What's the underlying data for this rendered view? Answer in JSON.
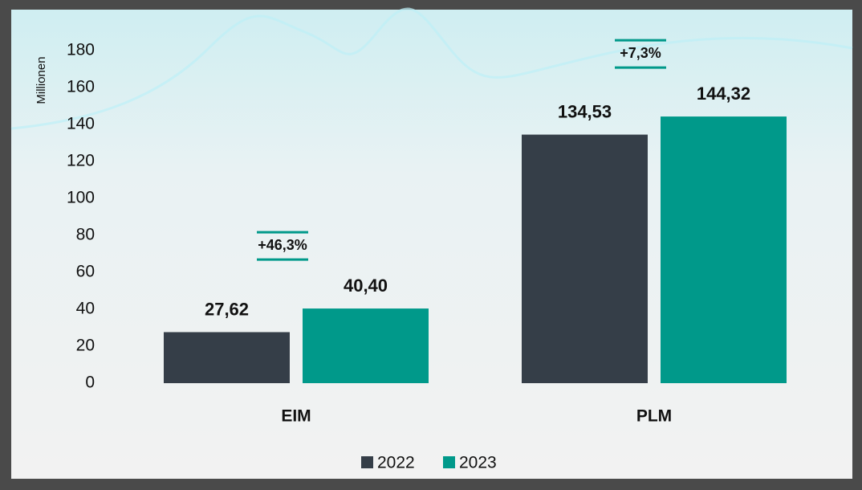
{
  "chart_data": {
    "type": "bar",
    "y_label": "Millionen",
    "categories": [
      "EIM",
      "PLM"
    ],
    "series": [
      {
        "name": "2022",
        "color": "#353e48",
        "values": [
          27.62,
          134.53
        ],
        "value_labels": [
          "27,62",
          "134,53"
        ]
      },
      {
        "name": "2023",
        "color": "#00998a",
        "values": [
          40.4,
          144.32
        ],
        "value_labels": [
          "40,40",
          "144,32"
        ]
      }
    ],
    "annotations": [
      "+46,3%",
      "+7,3%"
    ],
    "ylim": [
      0,
      180
    ],
    "yticks": [
      0,
      20,
      40,
      60,
      80,
      100,
      120,
      140,
      160,
      180
    ],
    "legend": "bottom"
  }
}
